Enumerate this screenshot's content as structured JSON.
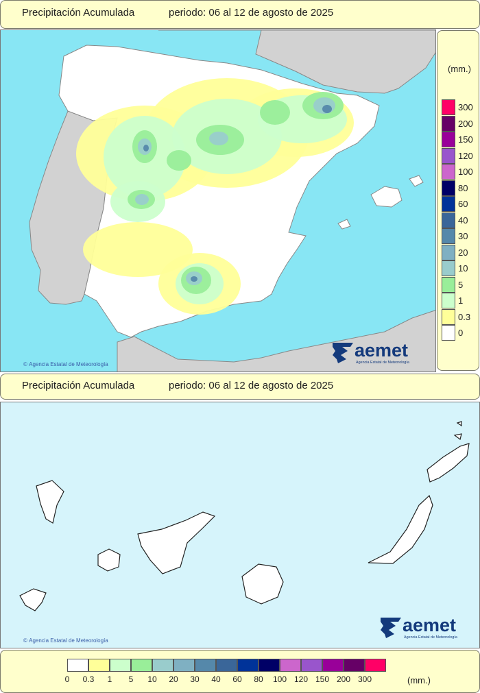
{
  "header_top": {
    "title": "Precipitación Acumulada",
    "period": "periodo: 06 al 12 de agosto de 2025"
  },
  "header_mid": {
    "title": "Precipitación Acumulada",
    "period": "periodo: 06 al 12 de agosto de 2025"
  },
  "legend": {
    "unit": "(mm.)",
    "levels": [
      {
        "label": "0",
        "color": "#ffffff"
      },
      {
        "label": "0.3",
        "color": "#ffff99"
      },
      {
        "label": "1",
        "color": "#ccffcc"
      },
      {
        "label": "5",
        "color": "#99ee99"
      },
      {
        "label": "10",
        "color": "#99cccc"
      },
      {
        "label": "20",
        "color": "#7fb0c2"
      },
      {
        "label": "30",
        "color": "#5588aa"
      },
      {
        "label": "40",
        "color": "#3a6699"
      },
      {
        "label": "60",
        "color": "#003399"
      },
      {
        "label": "80",
        "color": "#000066"
      },
      {
        "label": "100",
        "color": "#cc66cc"
      },
      {
        "label": "120",
        "color": "#9955cc"
      },
      {
        "label": "150",
        "color": "#990099"
      },
      {
        "label": "200",
        "color": "#660066"
      },
      {
        "label": "300",
        "color": "#ff0066"
      }
    ]
  },
  "copyright": "Agencia Estatal de Meteorología",
  "logo": {
    "word": "aemet",
    "subtitle": "Agencia Estatal de Meteorología"
  },
  "colors": {
    "sea_peninsula": "#88e6f4",
    "sea_canarias": "#d6f4fb",
    "land_foreign": "#d2d2d2",
    "land_spain": "#ffffff",
    "panel_background": "#ffffcc"
  }
}
